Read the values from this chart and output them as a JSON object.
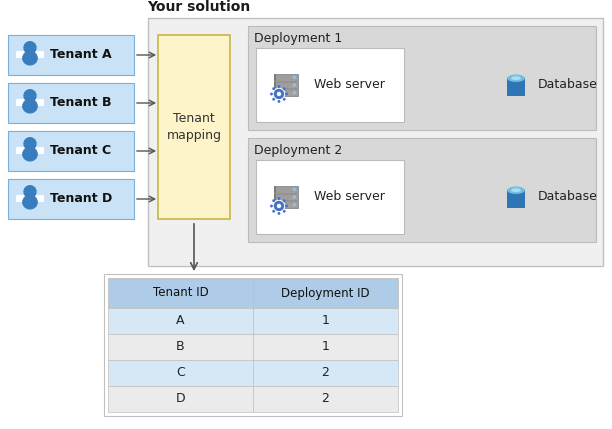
{
  "title": "Your solution",
  "bg_color": "#ffffff",
  "tenant_boxes": [
    "Tenant A",
    "Tenant B",
    "Tenant C",
    "Tenant D"
  ],
  "tenant_box_color": "#c9e2f5",
  "tenant_box_border": "#7bafd4",
  "mapping_box_color": "#fdf5c9",
  "mapping_box_border": "#c8b54a",
  "mapping_text": "Tenant\nmapping",
  "solution_box_color": "#f0f0f0",
  "solution_box_border": "#c0c0c0",
  "deployment_labels": [
    "Deployment 1",
    "Deployment 2"
  ],
  "deployment_box_color": "#d8d8d8",
  "deployment_box_border": "#bbbbbb",
  "webserver_box_color": "#ffffff",
  "webserver_box_border": "#bbbbbb",
  "table_outer_color": "#ffffff",
  "table_outer_border": "#c0c0c0",
  "table_header_color": "#aecce8",
  "table_row_colors": [
    "#d6e8f5",
    "#ebebeb",
    "#d6e8f5",
    "#ebebeb"
  ],
  "table_border": "#c0c0c0",
  "table_header": [
    "Tenant ID",
    "Deployment ID"
  ],
  "table_rows": [
    [
      "A",
      "1"
    ],
    [
      "B",
      "1"
    ],
    [
      "C",
      "2"
    ],
    [
      "D",
      "2"
    ]
  ],
  "icon_person_color": "#3a7dbf",
  "arrow_color": "#555555",
  "server_body_color": "#9e9e9e",
  "server_stripe_color": "#7a7a7a",
  "server_gear_color": "#4472c4",
  "db_body_color": "#2e75b6",
  "db_top_color": "#70c0e0"
}
